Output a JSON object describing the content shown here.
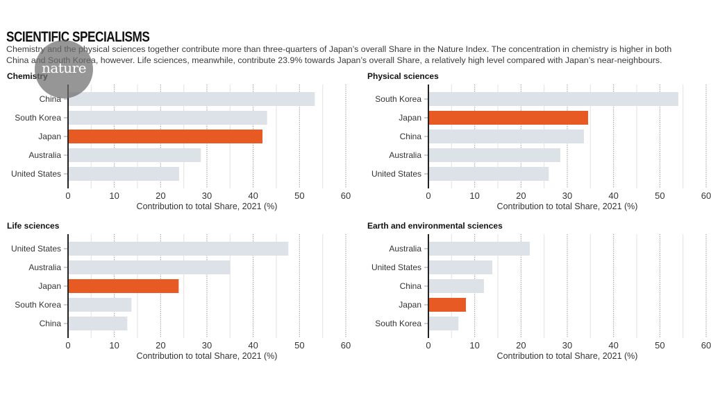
{
  "header": {
    "title": "SCIENTIFIC SPECIALISMS",
    "subtitle_lines": [
      "Chemistry and the physical sciences together contribute more than three-quarters of Japan’s overall Share in the Nature Index. The concentration in chemistry is higher in both",
      "China and South Korea, however. Life sciences, meanwhile, contribute 23.9% towards Japan’s overall Share, a relatively high level compared with Japan’s near-neighbours."
    ]
  },
  "logo": {
    "text": "nature"
  },
  "colors": {
    "highlight": "#e85a24",
    "default_bar": "#dde1e8",
    "axis": "#222222",
    "grid_major": "#9a9a9a",
    "grid_minor": "#e6e6e6"
  },
  "chart_data": [
    {
      "type": "bar",
      "orientation": "horizontal",
      "title": "Chemistry",
      "categories": [
        "China",
        "South Korea",
        "Japan",
        "Australia",
        "United States"
      ],
      "values": [
        53.3,
        43.0,
        42.0,
        28.7,
        24.0
      ],
      "highlight": "Japan",
      "xlabel": "Contribution to total Share, 2021 (%)",
      "xlim": [
        0,
        60
      ],
      "xticks": [
        "0",
        "10",
        "20",
        "30",
        "40",
        "50",
        "60"
      ],
      "grid": true
    },
    {
      "type": "bar",
      "orientation": "horizontal",
      "title": "Physical sciences",
      "categories": [
        "South Korea",
        "Japan",
        "China",
        "Australia",
        "United States"
      ],
      "values": [
        54.0,
        34.5,
        33.6,
        28.5,
        26.0
      ],
      "highlight": "Japan",
      "xlabel": "Contribution to total Share, 2021 (%)",
      "xlim": [
        0,
        60
      ],
      "xticks": [
        "0",
        "10",
        "20",
        "30",
        "40",
        "50",
        "60"
      ],
      "grid": true
    },
    {
      "type": "bar",
      "orientation": "horizontal",
      "title": "Life sciences",
      "categories": [
        "United States",
        "Australia",
        "Japan",
        "South Korea",
        "China"
      ],
      "values": [
        47.6,
        35.0,
        23.9,
        13.7,
        12.8
      ],
      "highlight": "Japan",
      "xlabel": "Contribution to total Share, 2021 (%)",
      "xlim": [
        0,
        60
      ],
      "xticks": [
        "0",
        "10",
        "20",
        "30",
        "40",
        "50",
        "60"
      ],
      "grid": true
    },
    {
      "type": "bar",
      "orientation": "horizontal",
      "title": "Earth and environmental sciences",
      "categories": [
        "Australia",
        "United States",
        "China",
        "Japan",
        "South Korea"
      ],
      "values": [
        21.9,
        13.8,
        12.0,
        8.1,
        6.5
      ],
      "highlight": "Japan",
      "xlabel": "Contribution to total Share, 2021 (%)",
      "xlim": [
        0,
        60
      ],
      "xticks": [
        "0",
        "10",
        "20",
        "30",
        "40",
        "50",
        "60"
      ],
      "grid": true
    }
  ]
}
